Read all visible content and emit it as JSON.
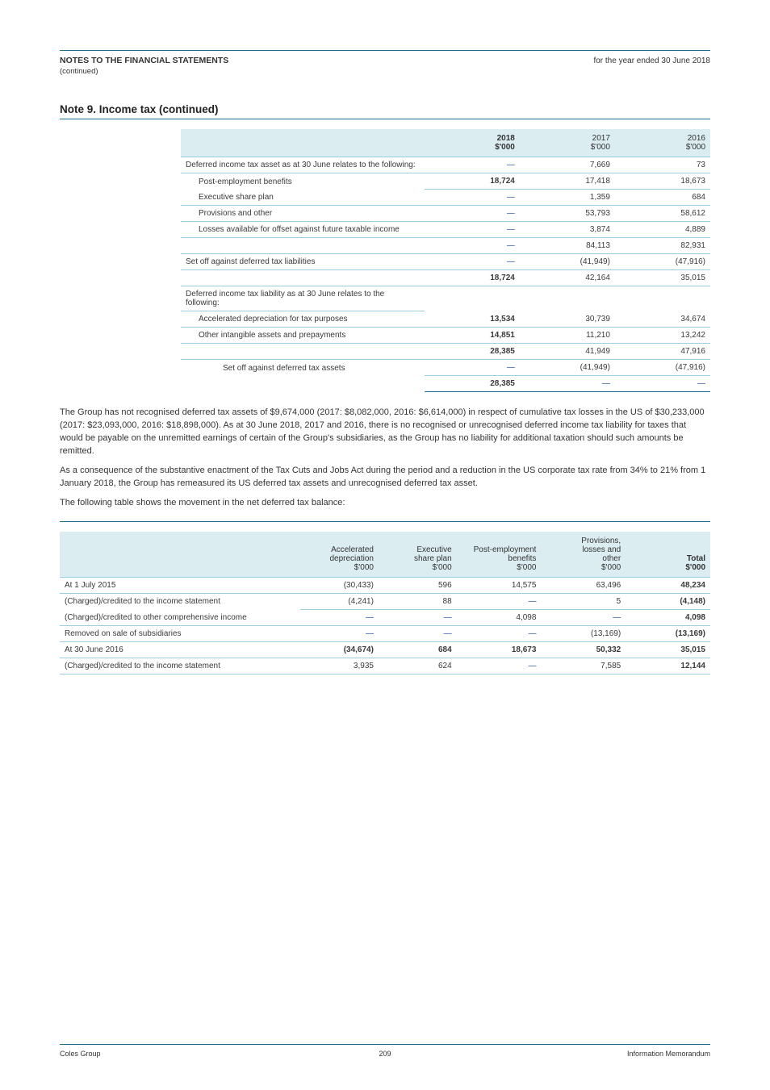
{
  "colors": {
    "rule": "#1a6e8e",
    "thin_rule": "#9ccde0",
    "header_bg": "#dcedf1",
    "text": "#333333",
    "dash": "#174a9c",
    "page_bg": "#ffffff"
  },
  "typography": {
    "body_fontsize": 11,
    "table_fontsize": 10,
    "heading_fontsize": 13.5,
    "font_family": "Arial, Helvetica, sans-serif"
  },
  "header": {
    "left": "NOTES TO THE FINANCIAL STATEMENTS",
    "right": "for the year ended 30 June 2018",
    "continued": "(continued)"
  },
  "note9": {
    "title": "Note 9. Income tax (continued)",
    "table": {
      "columns": [
        "",
        "2018\n$'000",
        "2017\n$'000",
        "2016\n$'000"
      ],
      "rows": [
        {
          "label": "Deferred income tax asset as at 30 June relates to the following:",
          "v": [
            "—",
            "7,669",
            "73"
          ],
          "indent": 0
        },
        {
          "label": "Post-employment benefits",
          "v": [
            "18,724",
            "17,418",
            "18,673"
          ],
          "indent": 1,
          "no_left_border": true
        },
        {
          "label": "Executive share plan",
          "v": [
            "—",
            "1,359",
            "684"
          ],
          "indent": 1
        },
        {
          "label": "Provisions and other",
          "v": [
            "—",
            "53,793",
            "58,612"
          ],
          "indent": 1
        },
        {
          "label": "Losses available for offset against future taxable income",
          "v": [
            "—",
            "3,874",
            "4,889"
          ],
          "indent": 1
        },
        {
          "label": "",
          "v": [
            "—",
            "84,113",
            "82,931"
          ],
          "indent": 0
        },
        {
          "label": "Set off against deferred tax liabilities",
          "v": [
            "—",
            "(41,949)",
            "(47,916)"
          ],
          "indent": 0
        },
        {
          "label": "",
          "v": [
            "18,724",
            "42,164",
            "35,015"
          ],
          "indent": 0
        },
        {
          "label": "Deferred income tax liability as at 30 June relates to the following:",
          "v": [
            "",
            "",
            ""
          ],
          "indent": 0
        },
        {
          "label": "Accelerated depreciation for tax purposes",
          "v": [
            "13,534",
            "30,739",
            "34,674"
          ],
          "indent": 1
        },
        {
          "label": "Other intangible assets and prepayments",
          "v": [
            "14,851",
            "11,210",
            "13,242"
          ],
          "indent": 1
        },
        {
          "label": "",
          "v": [
            "28,385",
            "41,949",
            "47,916"
          ],
          "indent": 0
        },
        {
          "label": "Set off against deferred tax assets",
          "v": [
            "—",
            "(41,949)",
            "(47,916)"
          ],
          "indent": 2,
          "no_left_border": true
        }
      ],
      "total": {
        "label": "",
        "v": [
          "28,385",
          "—",
          "—"
        ]
      }
    },
    "para1": "The Group has not recognised deferred tax assets of $9,674,000 (2017: $8,082,000, 2016: $6,614,000) in respect of cumulative tax losses in the US of $30,233,000 (2017: $23,093,000, 2016: $18,898,000). As at 30 June 2018, 2017 and 2016, there is no recognised or unrecognised deferred income tax liability for taxes that would be payable on the unremitted earnings of certain of the Group's subsidiaries, as the Group has no liability for additional taxation should such amounts be remitted.",
    "para2": "As a consequence of the substantive enactment of the Tax Cuts and Jobs Act during the period and a reduction in the US corporate tax rate from 34% to 21% from 1 January 2018, the Group has remeasured its US deferred tax assets and unrecognised deferred tax asset.",
    "para3": "The following table shows the movement in the net deferred tax balance:"
  },
  "note9_movement": {
    "columns": [
      "",
      "Accelerated\ndepreciation\n$'000",
      "Executive\nshare plan\n$'000",
      "Post-employment\nbenefits\n$'000",
      "Provisions,\nlosses and\nother\n$'000",
      "Total\n$'000"
    ],
    "rows": [
      {
        "label": "At 1 July 2015",
        "v": [
          "(30,433)",
          "596",
          "14,575",
          "63,496",
          "48,234"
        ]
      },
      {
        "label": "(Charged)/credited to the income statement",
        "v": [
          "(4,241)",
          "88",
          "—",
          "5",
          "(4,148)"
        ],
        "no_left_border": true
      },
      {
        "label": "(Charged)/credited to other comprehensive income",
        "v": [
          "—",
          "—",
          "4,098",
          "—",
          "4,098"
        ]
      },
      {
        "label": "Removed on sale of subsidiaries",
        "v": [
          "—",
          "—",
          "—",
          "(13,169)",
          "(13,169)"
        ]
      },
      {
        "label": "At 30 June 2016",
        "v": [
          "(34,674)",
          "684",
          "18,673",
          "50,332",
          "35,015"
        ],
        "bold": true
      },
      {
        "label": "(Charged)/credited to the income statement",
        "v": [
          "3,935",
          "624",
          "—",
          "7,585",
          "12,144"
        ]
      }
    ]
  },
  "footer": {
    "left": "Coles Group",
    "right": "Information Memorandum",
    "page": "209"
  }
}
